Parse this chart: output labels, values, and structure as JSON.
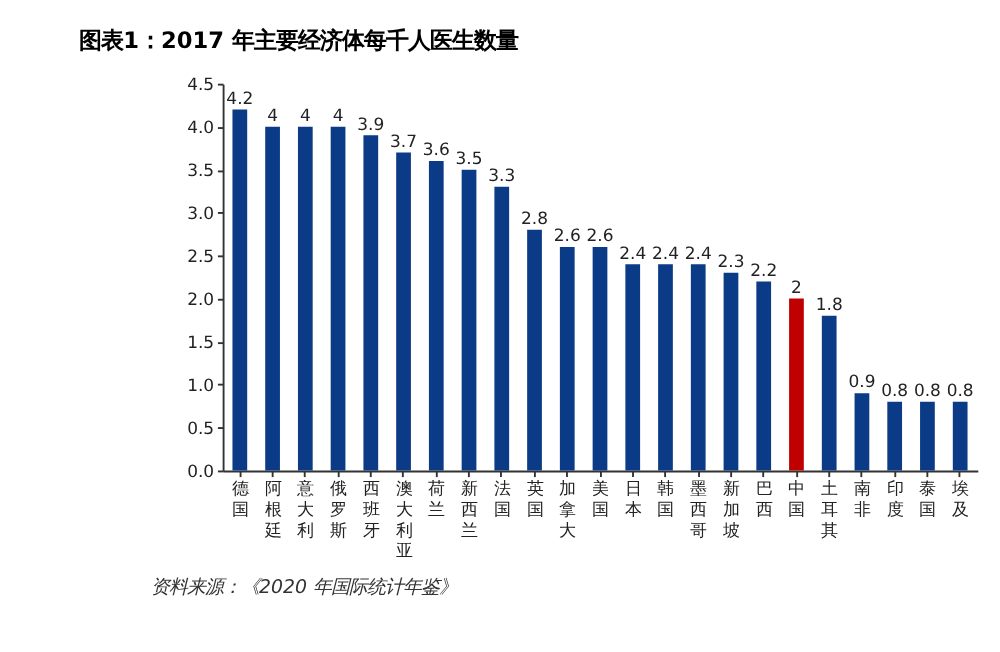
{
  "chart_data": {
    "type": "bar",
    "title": "图表1：2017 年主要经济体每千人医生数量",
    "categories": [
      "德国",
      "阿根廷",
      "意大利",
      "俄罗斯",
      "西班牙",
      "澳大利亚",
      "荷兰",
      "新西兰",
      "法国",
      "英国",
      "加拿大",
      "美国",
      "日本",
      "韩国",
      "墨西哥",
      "新加坡",
      "巴西",
      "中国",
      "土耳其",
      "南非",
      "印度",
      "泰国",
      "埃及"
    ],
    "values": [
      4.2,
      4,
      4,
      4,
      3.9,
      3.7,
      3.6,
      3.5,
      3.3,
      2.8,
      2.6,
      2.6,
      2.4,
      2.4,
      2.4,
      2.3,
      2.2,
      2,
      1.8,
      0.9,
      0.8,
      0.8,
      0.8
    ],
    "colors": [
      "#0b3a86",
      "#0b3a86",
      "#0b3a86",
      "#0b3a86",
      "#0b3a86",
      "#0b3a86",
      "#0b3a86",
      "#0b3a86",
      "#0b3a86",
      "#0b3a86",
      "#0b3a86",
      "#0b3a86",
      "#0b3a86",
      "#0b3a86",
      "#0b3a86",
      "#0b3a86",
      "#0b3a86",
      "#c00000",
      "#0b3a86",
      "#0b3a86",
      "#0b3a86",
      "#0b3a86",
      "#0b3a86"
    ],
    "ylim": [
      0,
      4.5
    ],
    "yticks": [
      {
        "value": 0,
        "label": "0.0"
      },
      {
        "value": 0.5,
        "label": "0.5"
      },
      {
        "value": 1,
        "label": "1.0"
      },
      {
        "value": 1.5,
        "label": "1.5"
      },
      {
        "value": 2,
        "label": "2.0"
      },
      {
        "value": 2.5,
        "label": "2.5"
      },
      {
        "value": 3,
        "label": "3.0"
      },
      {
        "value": 3.5,
        "label": "3.5"
      },
      {
        "value": 4,
        "label": "4.0"
      },
      {
        "value": 4.5,
        "label": "4.5"
      }
    ],
    "data_labels": true,
    "grid": false,
    "annotations": [
      "资料来源：《2020 年国际统计年鉴》"
    ]
  }
}
